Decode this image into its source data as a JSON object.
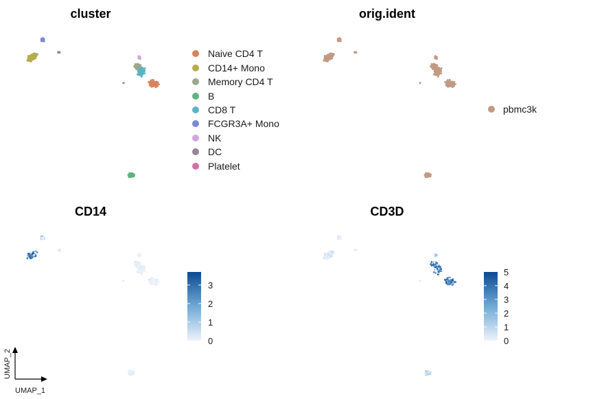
{
  "chart_data": [
    {
      "type": "scatter",
      "title": "cluster",
      "color_by": "cluster",
      "legend": {
        "position": "right",
        "entries": [
          {
            "label": "Naive CD4 T",
            "color": "#D9835C"
          },
          {
            "label": "CD14+ Mono",
            "color": "#B6AC4E"
          },
          {
            "label": "Memory CD4 T",
            "color": "#9CA78B"
          },
          {
            "label": "B",
            "color": "#5DB27D"
          },
          {
            "label": "CD8 T",
            "color": "#58B4C3"
          },
          {
            "label": "FCGR3A+ Mono",
            "color": "#7A88D6"
          },
          {
            "label": "NK",
            "color": "#D1A6DC"
          },
          {
            "label": "DC",
            "color": "#958592"
          },
          {
            "label": "Platelet",
            "color": "#D16FA7"
          }
        ]
      }
    },
    {
      "type": "scatter",
      "title": "orig.ident",
      "color_by": "orig.ident",
      "legend": {
        "position": "right",
        "entries": [
          {
            "label": "pbmc3k",
            "color": "#C09A82"
          }
        ]
      }
    },
    {
      "type": "scatter",
      "title": "CD14",
      "color_by": "expression",
      "colorbar": {
        "min": 0,
        "max": 3.7,
        "ticks": [
          "0",
          "1",
          "2",
          "3"
        ],
        "low_color": "#EEF3FB",
        "high_color": "#0B4A92"
      }
    },
    {
      "type": "scatter",
      "title": "CD3D",
      "color_by": "expression",
      "colorbar": {
        "min": 0,
        "max": 5,
        "ticks": [
          "0",
          "1",
          "2",
          "3",
          "4",
          "5"
        ],
        "low_color": "#EEF3FB",
        "high_color": "#0B4A92"
      }
    }
  ],
  "axes": {
    "xlabel": "UMAP_1",
    "ylabel": "UMAP_2"
  }
}
